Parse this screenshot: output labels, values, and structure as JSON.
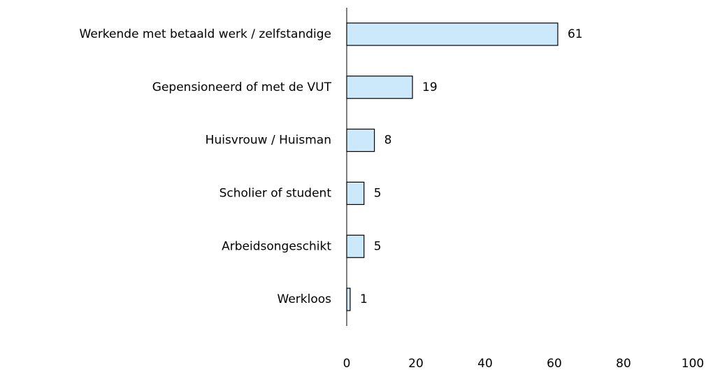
{
  "chart_data": {
    "type": "bar",
    "orientation": "horizontal",
    "categories": [
      "Werkende met betaald werk / zelfstandige",
      "Gepensioneerd of met de VUT",
      "Huisvrouw / Huisman",
      "Scholier of student",
      "Arbeidsongeschikt",
      "Werkloos"
    ],
    "values": [
      61,
      19,
      8,
      5,
      5,
      1
    ],
    "color": "#cce9fb",
    "xlim": [
      0,
      100
    ],
    "xticks": [
      0,
      20,
      40,
      60,
      80,
      100
    ],
    "grid": false
  }
}
